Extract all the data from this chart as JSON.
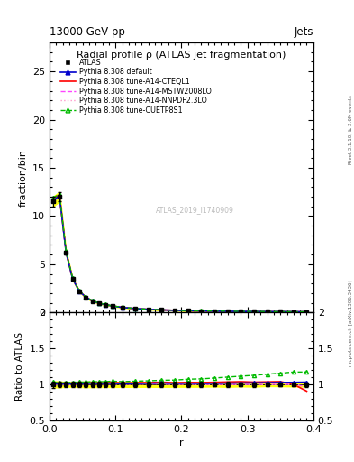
{
  "title": "Radial profile ρ (ATLAS jet fragmentation)",
  "header_left": "13000 GeV pp",
  "header_right": "Jets",
  "ylabel_main": "fraction/bin",
  "ylabel_ratio": "Ratio to ATLAS",
  "xlabel": "r",
  "right_label_top": "Rivet 3.1.10, ≥ 2.6M events",
  "right_label_bottom": "mcplots.cern.ch [arXiv:1306.3436]",
  "watermark": "ATLAS_2019_I1740909",
  "r_values": [
    0.005,
    0.015,
    0.025,
    0.035,
    0.045,
    0.055,
    0.065,
    0.075,
    0.085,
    0.095,
    0.11,
    0.13,
    0.15,
    0.17,
    0.19,
    0.21,
    0.23,
    0.25,
    0.27,
    0.29,
    0.31,
    0.33,
    0.35,
    0.37,
    0.39
  ],
  "atlas_values": [
    11.5,
    12.0,
    6.2,
    3.45,
    2.2,
    1.55,
    1.18,
    0.95,
    0.79,
    0.66,
    0.52,
    0.4,
    0.32,
    0.26,
    0.215,
    0.18,
    0.155,
    0.135,
    0.118,
    0.105,
    0.095,
    0.085,
    0.077,
    0.07,
    0.064
  ],
  "atlas_errors": [
    0.5,
    0.5,
    0.2,
    0.12,
    0.08,
    0.06,
    0.045,
    0.035,
    0.028,
    0.024,
    0.018,
    0.014,
    0.011,
    0.009,
    0.007,
    0.006,
    0.005,
    0.004,
    0.004,
    0.003,
    0.003,
    0.002,
    0.002,
    0.002,
    0.002
  ],
  "pythia_default_values": [
    11.6,
    12.1,
    6.25,
    3.48,
    2.22,
    1.57,
    1.2,
    0.96,
    0.8,
    0.67,
    0.525,
    0.405,
    0.325,
    0.265,
    0.218,
    0.183,
    0.157,
    0.137,
    0.12,
    0.107,
    0.097,
    0.087,
    0.079,
    0.072,
    0.066
  ],
  "pythia_cteql1_values": [
    11.8,
    12.2,
    6.3,
    3.5,
    2.24,
    1.58,
    1.21,
    0.97,
    0.81,
    0.68,
    0.53,
    0.41,
    0.328,
    0.268,
    0.22,
    0.185,
    0.159,
    0.139,
    0.122,
    0.109,
    0.098,
    0.088,
    0.08,
    0.07,
    0.058
  ],
  "pythia_mstw_values": [
    11.5,
    12.0,
    6.2,
    3.46,
    2.21,
    1.56,
    1.19,
    0.955,
    0.795,
    0.665,
    0.522,
    0.402,
    0.322,
    0.262,
    0.215,
    0.181,
    0.155,
    0.135,
    0.118,
    0.105,
    0.095,
    0.085,
    0.077,
    0.07,
    0.062
  ],
  "pythia_nnpdf_values": [
    11.5,
    12.0,
    6.2,
    3.46,
    2.21,
    1.56,
    1.19,
    0.955,
    0.795,
    0.665,
    0.522,
    0.402,
    0.322,
    0.262,
    0.215,
    0.181,
    0.155,
    0.135,
    0.118,
    0.105,
    0.095,
    0.085,
    0.077,
    0.07,
    0.062
  ],
  "pythia_cuetp_values": [
    11.9,
    12.25,
    6.35,
    3.55,
    2.27,
    1.6,
    1.225,
    0.985,
    0.82,
    0.69,
    0.54,
    0.418,
    0.336,
    0.275,
    0.228,
    0.193,
    0.167,
    0.147,
    0.13,
    0.117,
    0.107,
    0.097,
    0.089,
    0.082,
    0.075
  ],
  "color_atlas": "#000000",
  "color_default": "#0000cc",
  "color_cteql1": "#ff0000",
  "color_mstw": "#ff44ff",
  "color_nnpdf": "#ff99cc",
  "color_cuetp": "#00bb00",
  "ylim_main": [
    0,
    28
  ],
  "ylim_ratio": [
    0.5,
    2.0
  ],
  "yticks_main": [
    0,
    5,
    10,
    15,
    20,
    25
  ],
  "yticks_ratio": [
    0.5,
    1.0,
    1.5,
    2.0
  ],
  "xlim": [
    0,
    0.4
  ],
  "xticks": [
    0.0,
    0.1,
    0.2,
    0.3,
    0.4
  ]
}
